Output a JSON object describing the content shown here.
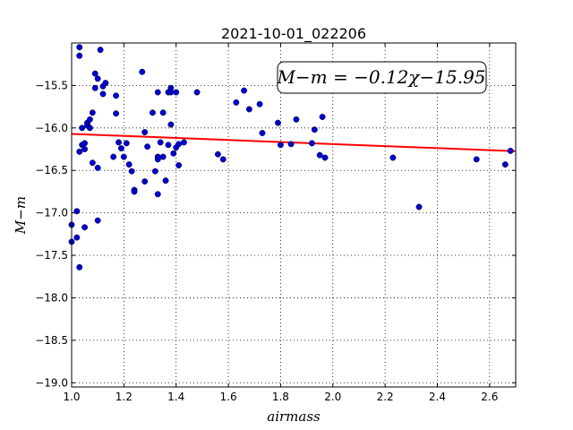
{
  "chart_data": {
    "type": "scatter",
    "title": "2021-10-01_022206",
    "xlabel": "airmass",
    "ylabel": "M−m",
    "xlim": [
      1.0,
      2.7
    ],
    "ylim": [
      -19.05,
      -15.0
    ],
    "y_inverted": true,
    "grid": true,
    "x_ticks": [
      "1.0",
      "1.2",
      "1.4",
      "1.6",
      "1.8",
      "2.0",
      "2.2",
      "2.4",
      "2.6"
    ],
    "x_tick_values": [
      1.0,
      1.2,
      1.4,
      1.6,
      1.8,
      2.0,
      2.2,
      2.4,
      2.6
    ],
    "y_ticks": [
      "−15.5",
      "−16.0",
      "−16.5",
      "−17.0",
      "−17.5",
      "−18.0",
      "−18.5",
      "−19.0"
    ],
    "y_tick_values": [
      -15.5,
      -16.0,
      -16.5,
      -17.0,
      -17.5,
      -18.0,
      -18.5,
      -19.0
    ],
    "annotation": "M−m = −0.12χ−15.95",
    "fit": {
      "slope": -0.12,
      "intercept": -15.95,
      "color": "#ff0000"
    },
    "point_color": "#0000cc",
    "points": [
      [
        1.0,
        -17.14
      ],
      [
        1.0,
        -17.34
      ],
      [
        1.02,
        -17.29
      ],
      [
        1.02,
        -16.98
      ],
      [
        1.03,
        -17.64
      ],
      [
        1.03,
        -15.05
      ],
      [
        1.03,
        -15.15
      ],
      [
        1.03,
        -16.28
      ],
      [
        1.04,
        -16.0
      ],
      [
        1.04,
        -16.2
      ],
      [
        1.05,
        -17.17
      ],
      [
        1.05,
        -16.18
      ],
      [
        1.05,
        -16.25
      ],
      [
        1.06,
        -15.94
      ],
      [
        1.06,
        -15.97
      ],
      [
        1.07,
        -15.9
      ],
      [
        1.07,
        -16.0
      ],
      [
        1.08,
        -16.41
      ],
      [
        1.08,
        -15.82
      ],
      [
        1.09,
        -15.36
      ],
      [
        1.09,
        -15.53
      ],
      [
        1.1,
        -15.42
      ],
      [
        1.1,
        -17.09
      ],
      [
        1.1,
        -16.47
      ],
      [
        1.11,
        -15.08
      ],
      [
        1.12,
        -15.51
      ],
      [
        1.12,
        -15.6
      ],
      [
        1.13,
        -15.47
      ],
      [
        1.16,
        -16.34
      ],
      [
        1.17,
        -15.62
      ],
      [
        1.17,
        -15.83
      ],
      [
        1.18,
        -16.17
      ],
      [
        1.19,
        -16.24
      ],
      [
        1.2,
        -16.34
      ],
      [
        1.21,
        -16.18
      ],
      [
        1.22,
        -16.43
      ],
      [
        1.23,
        -16.51
      ],
      [
        1.24,
        -16.73
      ],
      [
        1.24,
        -16.75
      ],
      [
        1.27,
        -15.34
      ],
      [
        1.28,
        -16.05
      ],
      [
        1.28,
        -16.63
      ],
      [
        1.29,
        -16.22
      ],
      [
        1.31,
        -15.82
      ],
      [
        1.32,
        -16.51
      ],
      [
        1.33,
        -16.34
      ],
      [
        1.33,
        -16.37
      ],
      [
        1.33,
        -16.78
      ],
      [
        1.33,
        -15.58
      ],
      [
        1.34,
        -16.17
      ],
      [
        1.35,
        -16.34
      ],
      [
        1.35,
        -15.82
      ],
      [
        1.36,
        -16.62
      ],
      [
        1.37,
        -16.2
      ],
      [
        1.37,
        -15.58
      ],
      [
        1.38,
        -15.53
      ],
      [
        1.38,
        -15.96
      ],
      [
        1.38,
        -15.58
      ],
      [
        1.39,
        -16.3
      ],
      [
        1.4,
        -16.23
      ],
      [
        1.4,
        -15.58
      ],
      [
        1.41,
        -16.44
      ],
      [
        1.41,
        -16.19
      ],
      [
        1.43,
        -16.17
      ],
      [
        1.48,
        -15.58
      ],
      [
        1.56,
        -16.31
      ],
      [
        1.58,
        -16.37
      ],
      [
        1.63,
        -15.7
      ],
      [
        1.66,
        -15.56
      ],
      [
        1.68,
        -15.78
      ],
      [
        1.72,
        -15.72
      ],
      [
        1.73,
        -16.06
      ],
      [
        1.79,
        -15.94
      ],
      [
        1.8,
        -16.2
      ],
      [
        1.84,
        -16.19
      ],
      [
        1.86,
        -15.9
      ],
      [
        1.92,
        -16.18
      ],
      [
        1.93,
        -16.02
      ],
      [
        1.95,
        -16.32
      ],
      [
        1.96,
        -15.87
      ],
      [
        1.97,
        -16.35
      ],
      [
        2.23,
        -16.35
      ],
      [
        2.33,
        -16.93
      ],
      [
        2.55,
        -16.37
      ],
      [
        2.66,
        -16.43
      ],
      [
        2.68,
        -16.27
      ]
    ]
  }
}
